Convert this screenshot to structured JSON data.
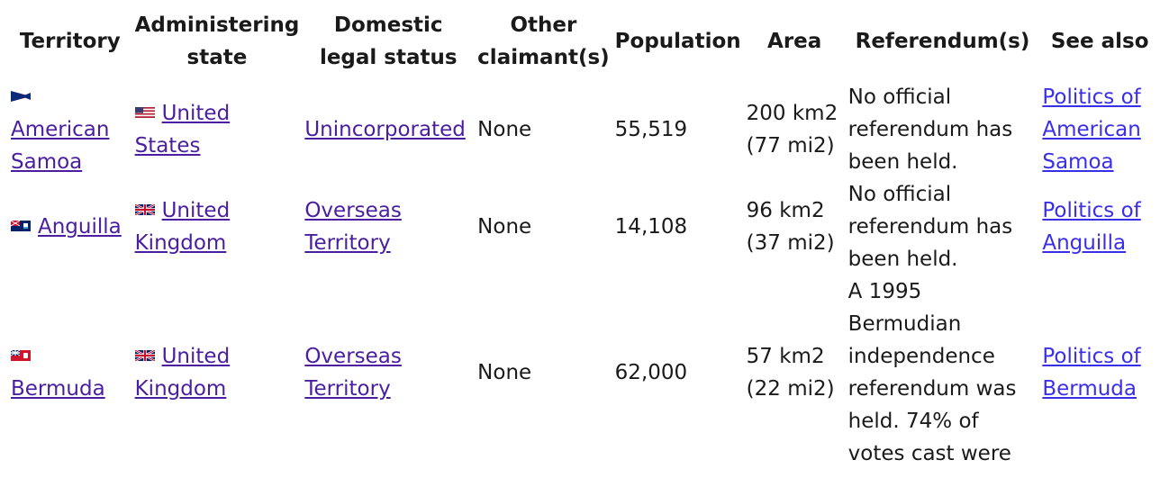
{
  "headers": {
    "territory": "Territory",
    "admin_line1": "Administering",
    "admin_line2": "state",
    "legal_line1": "Domestic",
    "legal_line2": "legal status",
    "claim_line1": "Other",
    "claim_line2": "claimant(s)",
    "population": "Population",
    "area": "Area",
    "referendum": "Referendum(s)",
    "see_also": "See also"
  },
  "rows": [
    {
      "territory": "American Samoa",
      "flag": "american-samoa-flag-icon",
      "admin_state": "United States",
      "admin_flag": "us-flag-icon",
      "legal_status": "Unincorporated",
      "other_claimants": "None",
      "population": "55,519",
      "area_km": "200 km2",
      "area_mi": "(77 mi2)",
      "referendum": "No official referendum has been held.",
      "see_also": "Politics of American Samoa"
    },
    {
      "territory": "Anguilla",
      "flag": "anguilla-flag-icon",
      "admin_state": "United Kingdom",
      "admin_flag": "uk-flag-icon",
      "legal_status": "Overseas Territory",
      "other_claimants": "None",
      "population": "14,108",
      "area_km": "96 km2",
      "area_mi": "(37 mi2)",
      "referendum": "No official referendum has been held.",
      "see_also": "Politics of Anguilla"
    },
    {
      "territory": "Bermuda",
      "flag": "bermuda-flag-icon",
      "admin_state": "United Kingdom",
      "admin_flag": "uk-flag-icon",
      "legal_status": "Overseas Territory",
      "other_claimants": "None",
      "population": "62,000",
      "area_km": "57 km2",
      "area_mi": "(22 mi2)",
      "referendum": "A 1995 Bermudian independence referendum was held. 74% of votes cast were",
      "see_also": "Politics of Bermuda"
    }
  ]
}
